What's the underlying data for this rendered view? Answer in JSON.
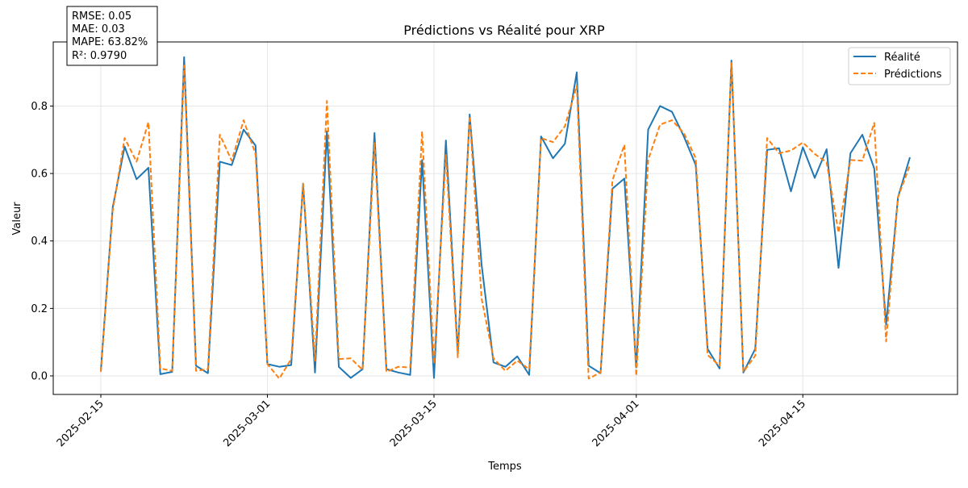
{
  "chart_data": {
    "type": "line",
    "title": "Prédictions vs Réalité pour XRP",
    "xlabel": "Temps",
    "ylabel": "Valeur",
    "x_dates": [
      "2025-02-15",
      "2025-02-16",
      "2025-02-17",
      "2025-02-18",
      "2025-02-19",
      "2025-02-20",
      "2025-02-21",
      "2025-02-22",
      "2025-02-23",
      "2025-02-24",
      "2025-02-25",
      "2025-02-26",
      "2025-02-27",
      "2025-02-28",
      "2025-03-01",
      "2025-03-02",
      "2025-03-03",
      "2025-03-04",
      "2025-03-05",
      "2025-03-06",
      "2025-03-07",
      "2025-03-08",
      "2025-03-09",
      "2025-03-10",
      "2025-03-11",
      "2025-03-12",
      "2025-03-13",
      "2025-03-14",
      "2025-03-15",
      "2025-03-16",
      "2025-03-17",
      "2025-03-18",
      "2025-03-19",
      "2025-03-20",
      "2025-03-21",
      "2025-03-22",
      "2025-03-23",
      "2025-03-24",
      "2025-03-25",
      "2025-03-26",
      "2025-03-27",
      "2025-03-28",
      "2025-03-29",
      "2025-03-30",
      "2025-03-31",
      "2025-04-01",
      "2025-04-02",
      "2025-04-03",
      "2025-04-04",
      "2025-04-05",
      "2025-04-06",
      "2025-04-07",
      "2025-04-08",
      "2025-04-09",
      "2025-04-10",
      "2025-04-11",
      "2025-04-12",
      "2025-04-13",
      "2025-04-14",
      "2025-04-15",
      "2025-04-16",
      "2025-04-17",
      "2025-04-18",
      "2025-04-19",
      "2025-04-20",
      "2025-04-21",
      "2025-04-22",
      "2025-04-23",
      "2025-04-24"
    ],
    "series": [
      {
        "name": "Réalité",
        "color": "#1f77b4",
        "style": "solid",
        "values": [
          0.015,
          0.5,
          0.68,
          0.583,
          0.617,
          0.005,
          0.012,
          0.945,
          0.03,
          0.008,
          0.635,
          0.625,
          0.73,
          0.683,
          0.035,
          0.027,
          0.032,
          0.57,
          0.01,
          0.725,
          0.027,
          -0.006,
          0.02,
          0.72,
          0.02,
          0.01,
          0.003,
          0.64,
          -0.006,
          0.698,
          0.068,
          0.775,
          0.33,
          0.04,
          0.027,
          0.058,
          0.003,
          0.71,
          0.645,
          0.688,
          0.9,
          0.03,
          0.008,
          0.555,
          0.585,
          0.025,
          0.73,
          0.8,
          0.783,
          0.71,
          0.625,
          0.08,
          0.022,
          0.935,
          0.01,
          0.08,
          0.67,
          0.675,
          0.547,
          0.678,
          0.587,
          0.672,
          0.32,
          0.66,
          0.715,
          0.615,
          0.152,
          0.53,
          0.648
        ]
      },
      {
        "name": "Prédictions",
        "color": "#ff7f0e",
        "style": "dashed",
        "values": [
          0.012,
          0.49,
          0.705,
          0.635,
          0.752,
          0.022,
          0.015,
          0.92,
          0.015,
          0.02,
          0.715,
          0.638,
          0.758,
          0.658,
          0.035,
          -0.008,
          0.05,
          0.57,
          0.045,
          0.815,
          0.05,
          0.052,
          0.018,
          0.69,
          0.012,
          0.027,
          0.025,
          0.725,
          0.035,
          0.655,
          0.055,
          0.77,
          0.23,
          0.052,
          0.015,
          0.045,
          0.02,
          0.705,
          0.693,
          0.74,
          0.86,
          -0.008,
          0.01,
          0.58,
          0.685,
          0.0,
          0.64,
          0.745,
          0.758,
          0.72,
          0.645,
          0.062,
          0.03,
          0.93,
          0.012,
          0.06,
          0.705,
          0.66,
          0.668,
          0.692,
          0.658,
          0.633,
          0.425,
          0.64,
          0.638,
          0.75,
          0.102,
          0.53,
          0.625
        ]
      }
    ],
    "x_ticks": [
      "2025-02-15",
      "2025-03-01",
      "2025-03-15",
      "2025-04-01",
      "2025-04-15"
    ],
    "y_ticks": [
      "0.0",
      "0.2",
      "0.4",
      "0.6",
      "0.8"
    ],
    "y_tick_values": [
      0.0,
      0.2,
      0.4,
      0.6,
      0.8
    ],
    "ylim": [
      -0.055,
      0.99
    ],
    "xlim_dates": [
      "2025-02-11",
      "2025-04-28"
    ],
    "grid": true,
    "legend_position": "top-right",
    "metrics": [
      "RMSE: 0.05",
      "MAE: 0.03",
      "MAPE: 63.82%",
      "R²: 0.9790"
    ]
  }
}
